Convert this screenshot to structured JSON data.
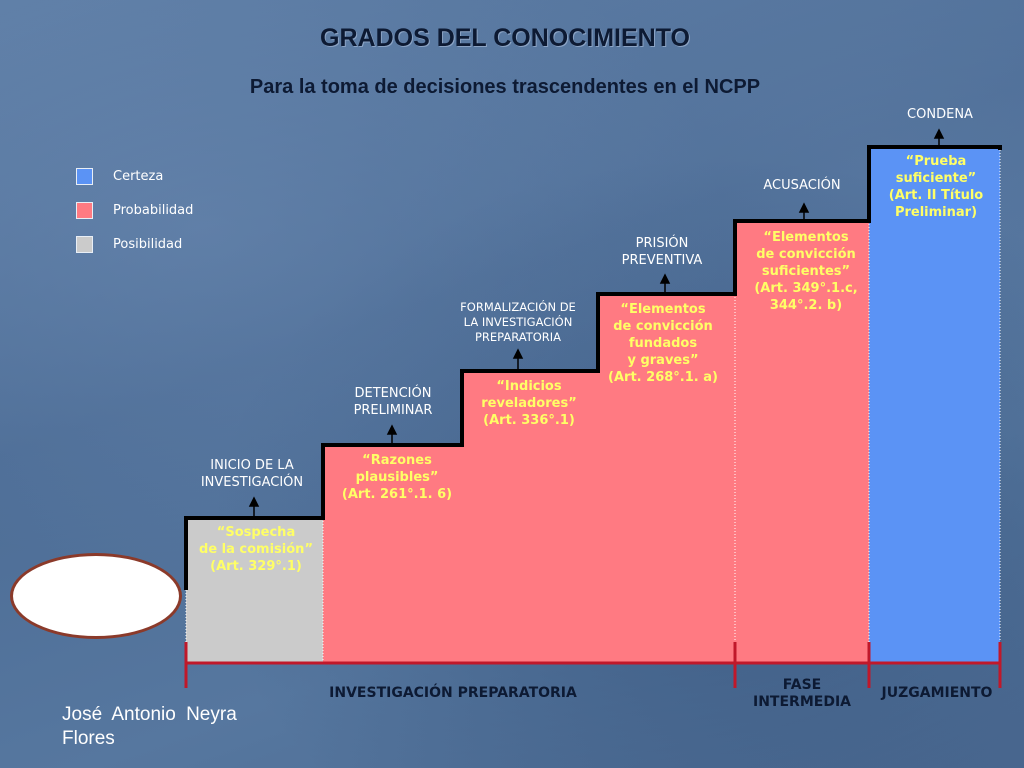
{
  "title": "GRADOS DEL CONOCIMIENTO",
  "subtitle": "Para la toma de decisiones trascendentes en el NCPP",
  "legend": [
    {
      "label": "Certeza",
      "color": "#5b93f5"
    },
    {
      "label": "Probabilidad",
      "color": "#ff7a82"
    },
    {
      "label": "Posibilidad",
      "color": "#cbcbcb"
    }
  ],
  "stages": [
    {
      "label": "INICIO DE LA\nINVESTIGACIÓN",
      "requirement": "“Sospecha\nde la comisión”\n(Art. 329°.1)",
      "level": "Posibilidad"
    },
    {
      "label": "DETENCIÓN\nPRELIMINAR",
      "requirement": "“Razones\nplausibles”\n(Art. 261°.1. 6)",
      "level": "Probabilidad"
    },
    {
      "label": "FORMALIZACIÓN DE\nLA INVESTIGACIÓN\nPREPARATORIA",
      "requirement": "“Indicios\nreveladores”\n(Art. 336°.1)",
      "level": "Probabilidad"
    },
    {
      "label": "PRISIÓN\nPREVENTIVA",
      "requirement": "“Elementos\nde convicción\nfundados\ny graves”\n(Art. 268°.1. a)",
      "level": "Probabilidad"
    },
    {
      "label": "ACUSACIÓN",
      "requirement": "“Elementos\nde convicción\nsuficientes”\n(Art. 349°.1.c,\n344°.2. b)",
      "level": "Probabilidad"
    },
    {
      "label": "CONDENA",
      "requirement": "“Prueba\nsuficiente”\n(Art. II Título\nPreliminar)",
      "level": "Certeza"
    }
  ],
  "phases": [
    {
      "label": "INVESTIGACIÓN PREPARATORIA"
    },
    {
      "label": "FASE\nINTERMEDIA"
    },
    {
      "label": "JUZGAMIENTO"
    }
  ],
  "author": "José Antonio Neyra\nFlores",
  "colors": {
    "certeza": "#5b93f5",
    "probabilidad": "#ff7a82",
    "posibilidad": "#cbcbcb",
    "requirement_text": "#ffff66",
    "phase_bracket": "#c0182a"
  }
}
